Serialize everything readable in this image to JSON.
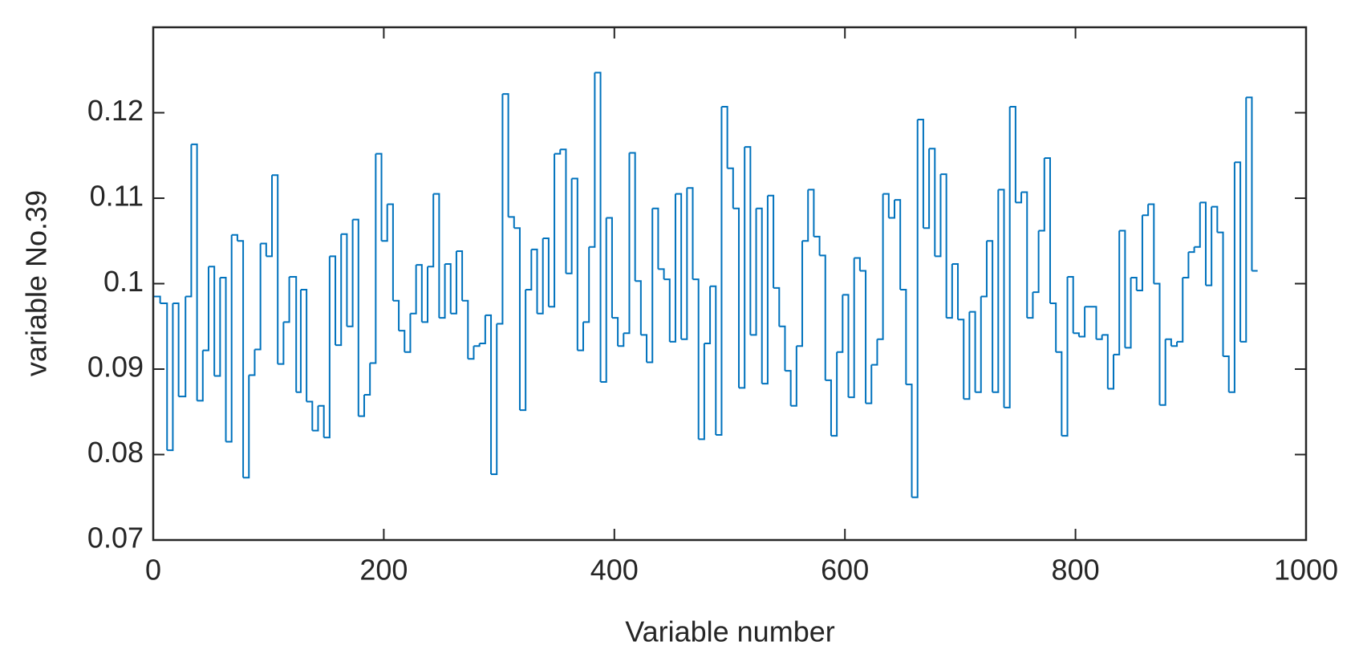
{
  "chart_data": {
    "type": "stairs",
    "xlabel": "Variable number",
    "ylabel": "variable No.39",
    "xlim": [
      0,
      1000
    ],
    "xticks": [
      0,
      200,
      400,
      600,
      800,
      1000
    ],
    "ylim": [
      0.07,
      0.13
    ],
    "yticks": [
      0.07,
      0.08,
      0.09,
      0.1,
      0.11,
      0.12
    ],
    "color": "#0072bd",
    "x": [
      0,
      6,
      12,
      17,
      22,
      28,
      33,
      38,
      43,
      48,
      53,
      58,
      63,
      68,
      73,
      78,
      83,
      88,
      93,
      98,
      103,
      108,
      113,
      118,
      124,
      128,
      133,
      138,
      143,
      148,
      153,
      158,
      163,
      168,
      173,
      178,
      183,
      188,
      193,
      198,
      203,
      208,
      213,
      218,
      223,
      228,
      233,
      238,
      243,
      248,
      253,
      258,
      263,
      268,
      273,
      278,
      283,
      288,
      293,
      298,
      303,
      308,
      313,
      318,
      323,
      328,
      333,
      338,
      343,
      348,
      353,
      358,
      363,
      368,
      373,
      378,
      383,
      388,
      393,
      398,
      403,
      408,
      413,
      418,
      423,
      428,
      433,
      438,
      443,
      448,
      453,
      458,
      463,
      468,
      473,
      478,
      483,
      488,
      493,
      498,
      503,
      508,
      513,
      518,
      523,
      528,
      533,
      538,
      543,
      548,
      553,
      558,
      563,
      568,
      573,
      578,
      583,
      588,
      593,
      598,
      603,
      608,
      613,
      618,
      623,
      628,
      633,
      638,
      643,
      648,
      653,
      658,
      663,
      668,
      673,
      678,
      683,
      688,
      693,
      698,
      703,
      708,
      713,
      718,
      723,
      728,
      733,
      738,
      743,
      748,
      753,
      758,
      763,
      768,
      773,
      778,
      783,
      788,
      793,
      798,
      803,
      808,
      818,
      823,
      828,
      833,
      838,
      843,
      848,
      853,
      858,
      863,
      868,
      873,
      878,
      883,
      888,
      893,
      898,
      903,
      908,
      913,
      918,
      923,
      928,
      933,
      938,
      943,
      948,
      953,
      958
    ],
    "values": [
      0.0985,
      0.0977,
      0.0805,
      0.0977,
      0.0868,
      0.0985,
      0.1163,
      0.0863,
      0.0922,
      0.102,
      0.0892,
      0.1007,
      0.0815,
      0.1057,
      0.105,
      0.0773,
      0.0893,
      0.0923,
      0.1047,
      0.1032,
      0.1127,
      0.0906,
      0.0955,
      0.1008,
      0.0873,
      0.0993,
      0.0862,
      0.0828,
      0.0857,
      0.082,
      0.1032,
      0.0928,
      0.1058,
      0.095,
      0.1075,
      0.0845,
      0.087,
      0.0907,
      0.1152,
      0.105,
      0.1093,
      0.098,
      0.0945,
      0.092,
      0.0965,
      0.1022,
      0.0955,
      0.102,
      0.1105,
      0.096,
      0.1023,
      0.0965,
      0.1038,
      0.098,
      0.0912,
      0.0927,
      0.093,
      0.0963,
      0.0777,
      0.0953,
      0.1222,
      0.1078,
      0.1065,
      0.0852,
      0.0993,
      0.104,
      0.0965,
      0.1053,
      0.0973,
      0.1152,
      0.1157,
      0.1012,
      0.1123,
      0.0922,
      0.0955,
      0.1043,
      0.1247,
      0.0885,
      0.1077,
      0.096,
      0.0927,
      0.0942,
      0.1153,
      0.1003,
      0.094,
      0.0908,
      0.1088,
      0.1017,
      0.1005,
      0.0932,
      0.1105,
      0.0935,
      0.1112,
      0.1005,
      0.0818,
      0.093,
      0.0997,
      0.0823,
      0.1207,
      0.1135,
      0.1088,
      0.0878,
      0.116,
      0.094,
      0.1088,
      0.0883,
      0.1103,
      0.0995,
      0.095,
      0.0898,
      0.0857,
      0.0927,
      0.105,
      0.111,
      0.1055,
      0.1033,
      0.0887,
      0.0822,
      0.092,
      0.0987,
      0.0867,
      0.103,
      0.1015,
      0.086,
      0.0905,
      0.0935,
      0.1105,
      0.1077,
      0.1098,
      0.0993,
      0.0882,
      0.075,
      0.1192,
      0.1065,
      0.1158,
      0.1032,
      0.1128,
      0.096,
      0.1023,
      0.0958,
      0.0865,
      0.0967,
      0.0873,
      0.0985,
      0.105,
      0.0873,
      0.111,
      0.0855,
      0.1207,
      0.1095,
      0.1107,
      0.096,
      0.099,
      0.1062,
      0.1147,
      0.0977,
      0.092,
      0.0822,
      0.1008,
      0.0942,
      0.0938,
      0.0973,
      0.0935,
      0.094,
      0.0877,
      0.0917,
      0.1062,
      0.0925,
      0.1007,
      0.0992,
      0.108,
      0.1093,
      0.1,
      0.0858,
      0.0935,
      0.0927,
      0.0932,
      0.1007,
      0.1037,
      0.1043,
      0.1095,
      0.0998,
      0.109,
      0.106,
      0.0915,
      0.0873,
      0.1142,
      0.0932,
      0.1218,
      0.1015,
      0.1015
    ]
  }
}
